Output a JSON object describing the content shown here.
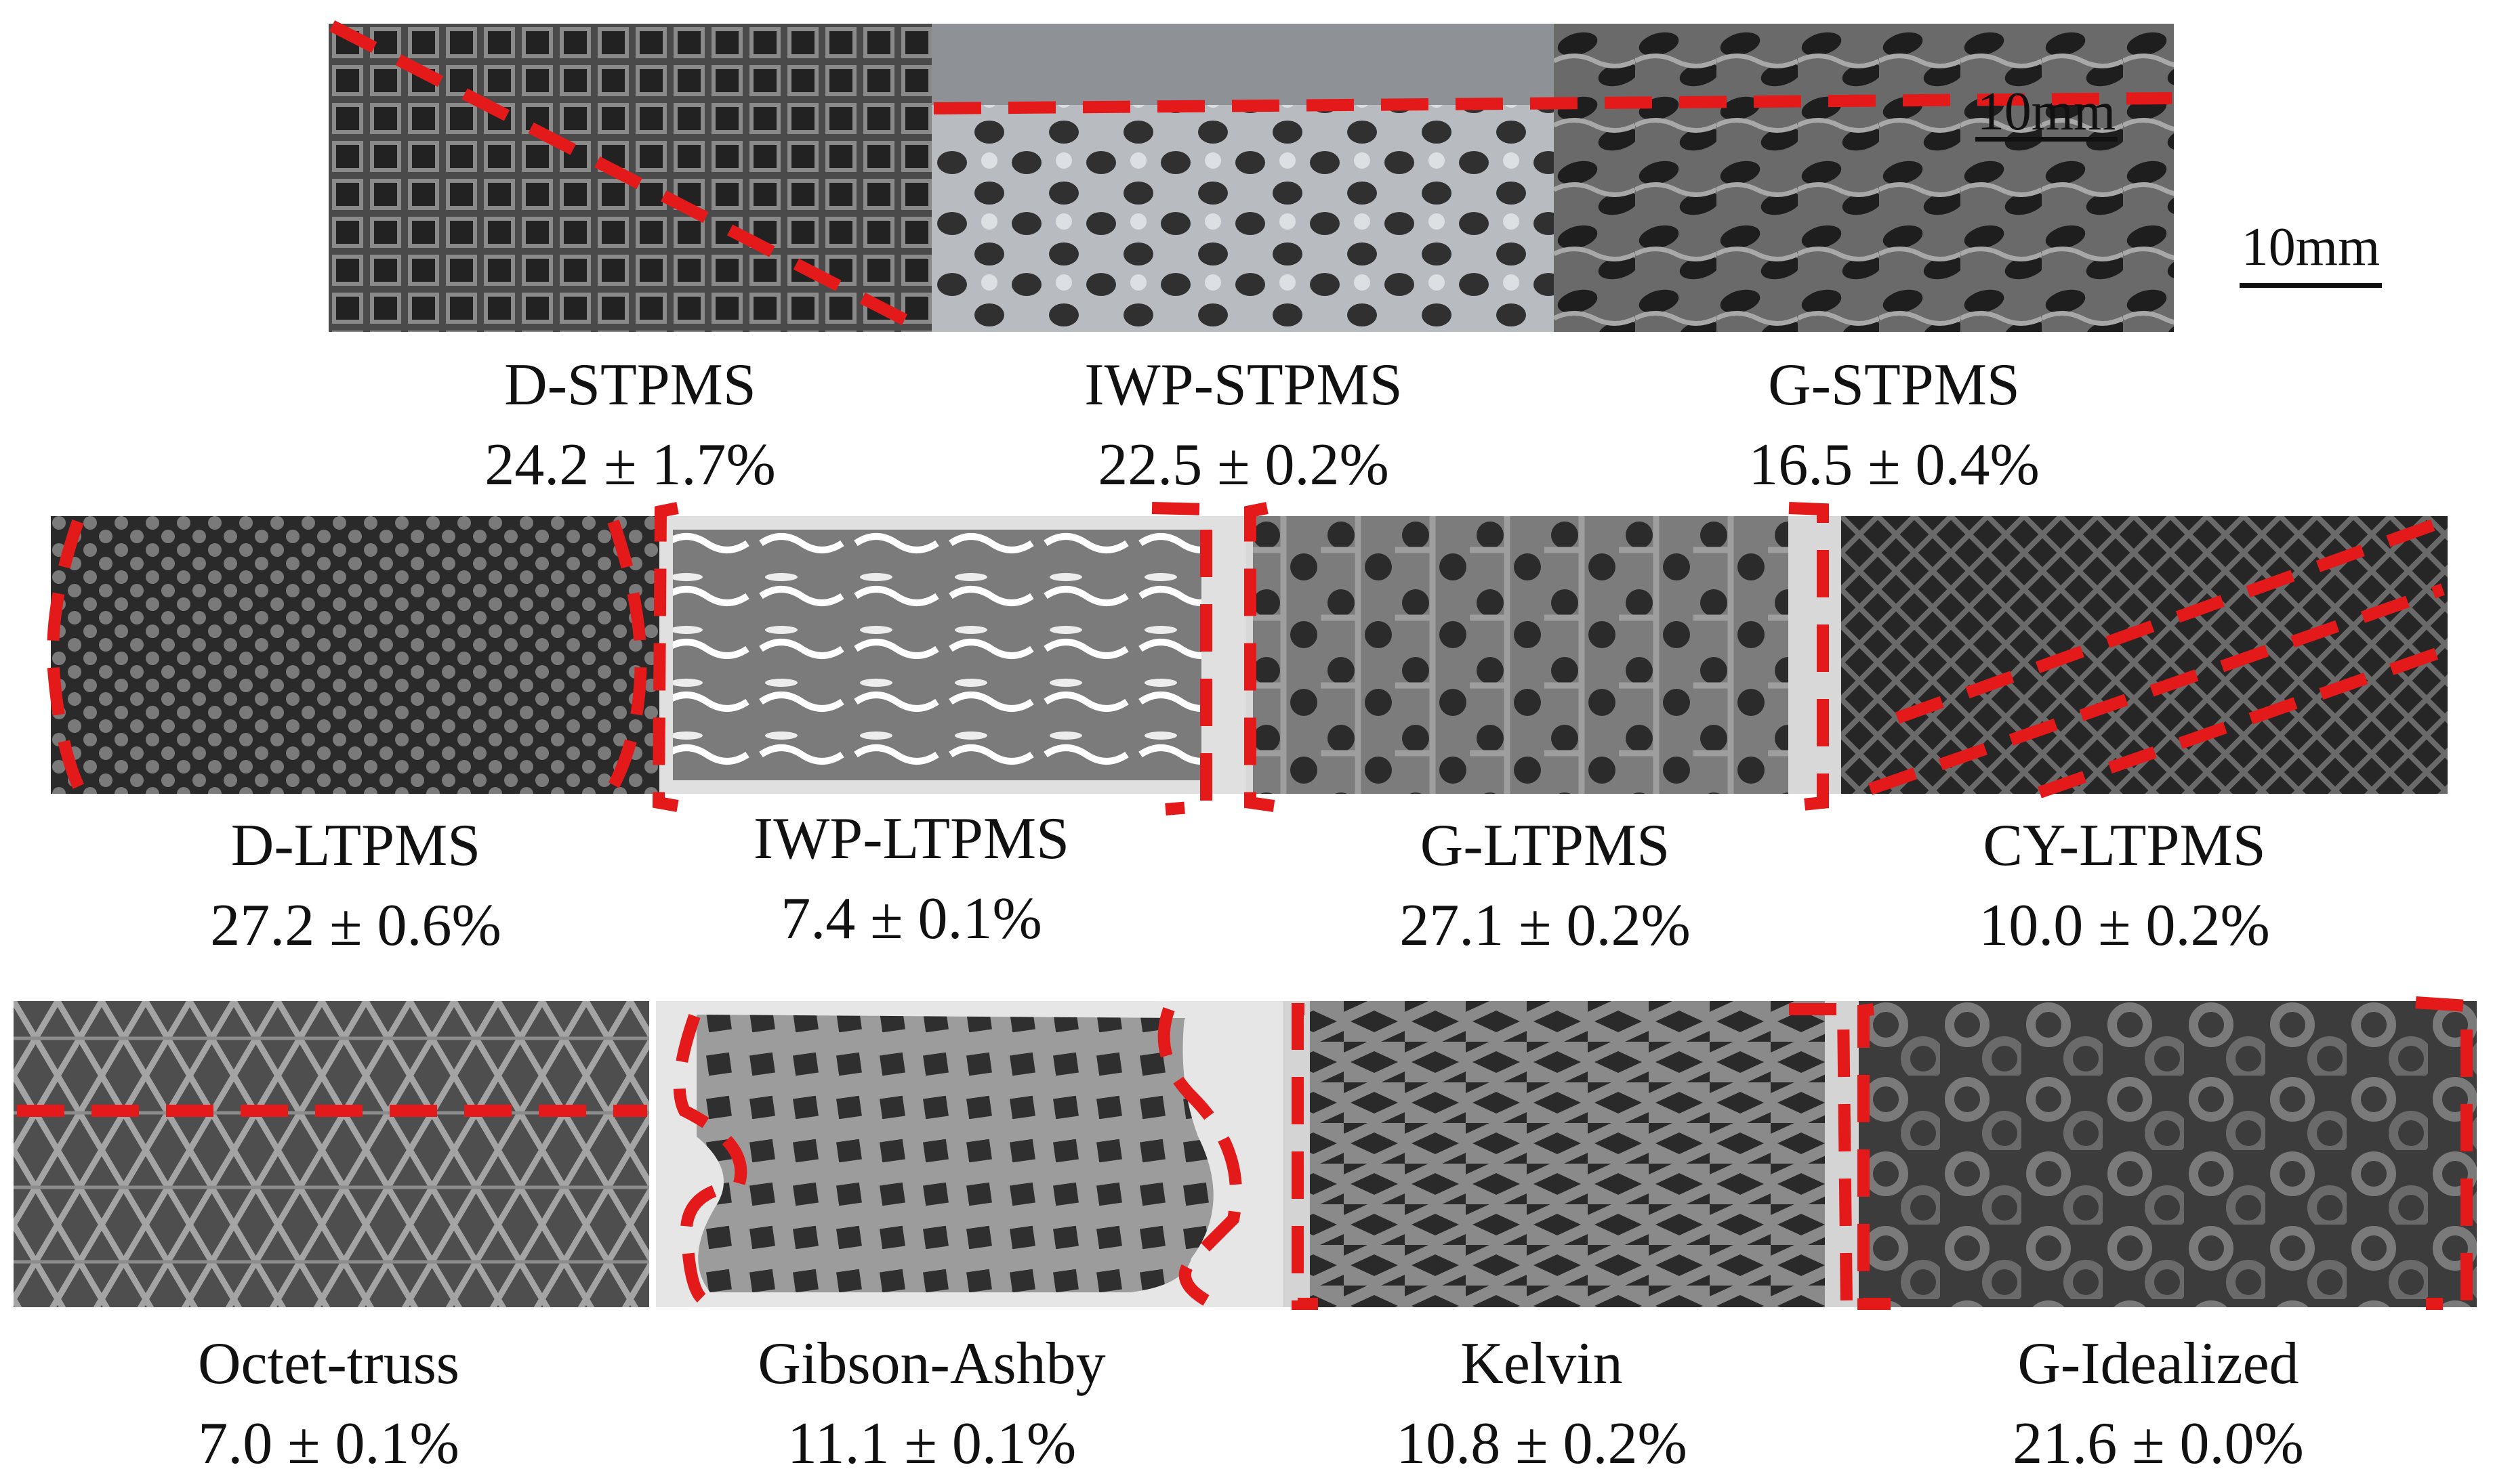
{
  "scale_bars": [
    {
      "label": "10mm"
    },
    {
      "label": "10mm"
    }
  ],
  "samples": [
    {
      "name": "D-STPMS",
      "value": "24.2 ± 1.7%"
    },
    {
      "name": "IWP-STPMS",
      "value": "22.5 ± 0.2%"
    },
    {
      "name": "G-STPMS",
      "value": "16.5 ± 0.4%"
    },
    {
      "name": "D-LTPMS",
      "value": "27.2 ± 0.6%"
    },
    {
      "name": "IWP-LTPMS",
      "value": "7.4 ± 0.1%"
    },
    {
      "name": "G-LTPMS",
      "value": "27.1 ± 0.2%"
    },
    {
      "name": "CY-LTPMS",
      "value": "10.0 ± 0.2%"
    },
    {
      "name": "Octet-truss",
      "value": "7.0 ± 0.1%"
    },
    {
      "name": "Gibson-Ashby",
      "value": "11.1 ± 0.1%"
    },
    {
      "name": "Kelvin",
      "value": "10.8 ± 0.2%"
    },
    {
      "name": "G-Idealized",
      "value": "21.6 ± 0.0%"
    }
  ],
  "colors": {
    "failure_line": "#e41a1a",
    "specimen_dark": "#3a3a3a",
    "specimen_light": "#9a9a9a"
  }
}
